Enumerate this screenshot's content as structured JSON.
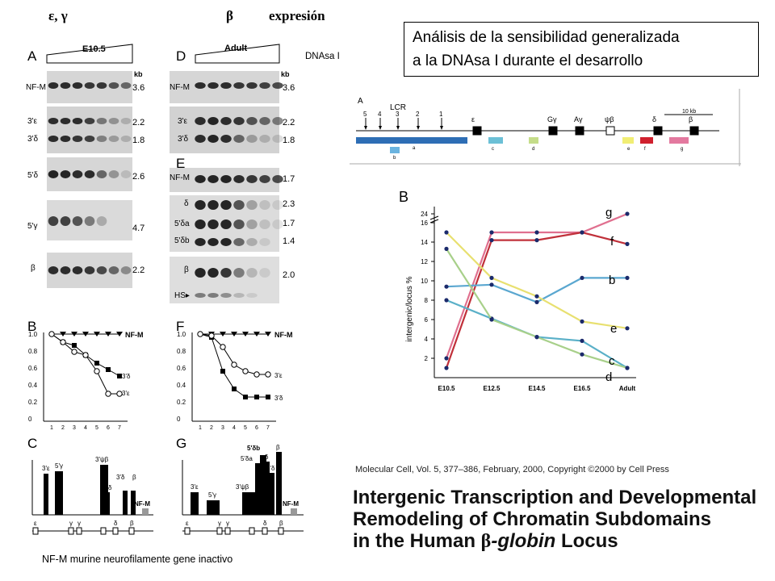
{
  "header": {
    "left": "ε, γ",
    "mid": "β",
    "right": "expresión"
  },
  "dnase_label": "DNAsa I",
  "title_box": {
    "line1": "Análisis de la sensibilidad generalizada",
    "line2": "a la DNAsa I durante el desarrollo"
  },
  "footnote": "NF-M murine neurofilamente gene inactivo",
  "citation": "Molecular Cell, Vol. 5, 377–386, February, 2000, Copyright ©2000 by Cell Press",
  "paper_title": {
    "line1": "Intergenic Transcription and Developmental",
    "line2": "Remodeling of Chromatin Subdomains",
    "line3_pre": "in the Human ",
    "line3_beta": "β",
    "line3_italic": "-globin",
    "line3_post": " Locus"
  },
  "gel_left": {
    "panel": "A",
    "stage": "E10.5",
    "kb_header": "kb",
    "rows": [
      {
        "labels": [
          "NF-M"
        ],
        "kb": [
          "3.6"
        ]
      },
      {
        "labels": [
          "3'ε",
          "3'δ"
        ],
        "kb": [
          "2.2",
          "1.8"
        ]
      },
      {
        "labels": [
          "5'δ"
        ],
        "kb": [
          "2.6"
        ]
      },
      {
        "labels": [
          "5'γ"
        ],
        "kb": [
          "4.7"
        ]
      },
      {
        "labels": [
          "β"
        ],
        "kb": [
          "2.2"
        ]
      }
    ]
  },
  "gel_right": {
    "panel_top": "D",
    "panel_mid": "E",
    "stage": "Adult",
    "kb_header": "kb",
    "rows": [
      {
        "labels": [
          "NF-M"
        ],
        "kb": [
          "3.6"
        ]
      },
      {
        "labels": [
          "3'ε",
          "3'δ"
        ],
        "kb": [
          "2.2",
          "1.8"
        ]
      },
      {
        "labels": [
          "NF-M"
        ],
        "kb": [
          "1.7"
        ]
      },
      {
        "labels": [
          "δ",
          "5'δa",
          "5'δb"
        ],
        "kb": [
          "2.3",
          "1.7",
          "1.4"
        ]
      },
      {
        "labels": [
          "β",
          "HS▸"
        ],
        "kb": [
          "2.0"
        ]
      }
    ]
  },
  "panel_B": {
    "panel": "B",
    "yticks": [
      "1.0",
      "0.8",
      "0.6",
      "0.4",
      "0.2",
      "0"
    ],
    "xticks": [
      "1",
      "2",
      "3",
      "4",
      "5",
      "6",
      "7"
    ],
    "series_labels": [
      "NF-M",
      "3'δ",
      "3'ε"
    ]
  },
  "panel_F": {
    "panel": "F",
    "yticks": [
      "1.0",
      "0.8",
      "0.6",
      "0.4",
      "0.2",
      "0"
    ],
    "xticks": [
      "1",
      "2",
      "3",
      "4",
      "5",
      "6",
      "7"
    ],
    "series_labels": [
      "NF-M",
      "3'ε",
      "3'δ"
    ]
  },
  "panel_C": {
    "panel": "C",
    "bar_labels": [
      "3'ε",
      "5'γ",
      "3'ψβ",
      "5'δ",
      "3'δ",
      "β",
      "NF-M"
    ],
    "axis_labels": [
      "ε",
      "γ",
      "γ",
      "δ",
      "β"
    ]
  },
  "panel_G": {
    "panel": "G",
    "bar_labels": [
      "3'ε",
      "5'γ",
      "3'ψβ",
      "5'δa",
      "5'δb",
      "δ",
      "3'δ",
      "β",
      "NF-M"
    ],
    "axis_labels": [
      "ε",
      "γ",
      "γ",
      "δ",
      "β"
    ]
  },
  "locus_map": {
    "panel": "A",
    "lcr": "LCR",
    "scale": "10 kb",
    "hs_sites": [
      "5",
      "4",
      "3",
      "2",
      "1"
    ],
    "genes": [
      "ε",
      "Gγ",
      "Aγ",
      "ψβ",
      "δ",
      "β"
    ],
    "fragments": [
      "a",
      "b",
      "c",
      "d",
      "e",
      "f",
      "g"
    ]
  },
  "chart_data": {
    "type": "line",
    "panel": "B",
    "ylabel": "intergenic/locus %",
    "categories": [
      "E10.5",
      "E12.5",
      "E14.5",
      "E16.5",
      "Adult"
    ],
    "yticks": [
      "2",
      "4",
      "6",
      "8",
      "10",
      "12",
      "14",
      "16",
      "24"
    ],
    "series": [
      {
        "name": "g",
        "values": [
          2,
          15,
          15,
          15,
          24
        ],
        "color": "#e0708f"
      },
      {
        "name": "f",
        "values": [
          1,
          14.2,
          14.2,
          15,
          13.8
        ],
        "color": "#c0303a"
      },
      {
        "name": "b",
        "values": [
          9.4,
          9.6,
          7.8,
          10.3,
          10.3
        ],
        "color": "#5aa7d0"
      },
      {
        "name": "e",
        "values": [
          15,
          10.3,
          8.4,
          5.8,
          5.1
        ],
        "color": "#e8e070"
      },
      {
        "name": "c",
        "values": [
          8,
          6.1,
          4.2,
          3.8,
          1
        ],
        "color": "#5ab0c8"
      },
      {
        "name": "d",
        "values": [
          13.3,
          6.0,
          4.2,
          2.4,
          1
        ],
        "color": "#a8d08a"
      }
    ]
  }
}
